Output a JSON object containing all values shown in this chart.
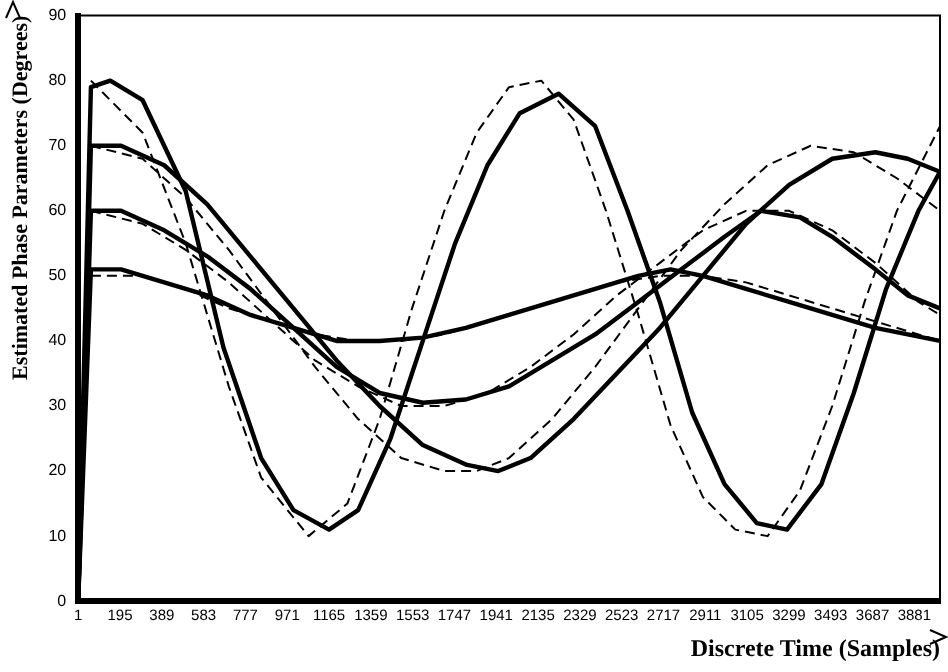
{
  "chart_data": {
    "type": "line",
    "xlabel": "Discrete Time (Samples)",
    "ylabel": "Estimated Phase Parameters (Degrees)",
    "xlim": [
      1,
      4000
    ],
    "ylim": [
      0,
      90
    ],
    "xticks": [
      1,
      195,
      389,
      583,
      777,
      971,
      1165,
      1359,
      1553,
      1747,
      1941,
      2135,
      2329,
      2523,
      2717,
      2911,
      3105,
      3299,
      3493,
      3687,
      3881
    ],
    "yticks": [
      0,
      10,
      20,
      30,
      40,
      50,
      60,
      70,
      80,
      90
    ],
    "grid": false,
    "legend": false,
    "marker": "none",
    "series": [
      {
        "color": "#000000",
        "line_style": "dashed",
        "x": [
          60,
          300,
          500,
          700,
          850,
          1070,
          1250,
          1400,
          1550,
          1700,
          1850,
          2000,
          2150,
          2300,
          2450,
          2600,
          2750,
          2900,
          3050,
          3200,
          3350,
          3500,
          3650,
          3800,
          4000
        ],
        "values": [
          80,
          72,
          55,
          33,
          19,
          10,
          15,
          28,
          45,
          60,
          72,
          79,
          80,
          74,
          60,
          44,
          27,
          16,
          11,
          10,
          17,
          30,
          46,
          60,
          73
        ]
      },
      {
        "color": "#000000",
        "line_style": "dashed",
        "x": [
          60,
          300,
          500,
          700,
          900,
          1100,
          1300,
          1500,
          1700,
          1850,
          2000,
          2200,
          2400,
          2600,
          2800,
          3000,
          3200,
          3400,
          3600,
          3800,
          4000
        ],
        "values": [
          70,
          68,
          62,
          54,
          45,
          36,
          28,
          22,
          20,
          20,
          22,
          28,
          36,
          45,
          54,
          61,
          67,
          70,
          69,
          65,
          60
        ]
      },
      {
        "color": "#000000",
        "line_style": "dashed",
        "x": [
          60,
          300,
          500,
          700,
          900,
          1100,
          1300,
          1500,
          1700,
          1900,
          2100,
          2300,
          2500,
          2700,
          2900,
          3100,
          3300,
          3500,
          3700,
          3900,
          4000
        ],
        "values": [
          60,
          58,
          54,
          49,
          43,
          37,
          33,
          30,
          30,
          32,
          36,
          41,
          47,
          52,
          57,
          60,
          60,
          57,
          52,
          46,
          44
        ]
      },
      {
        "color": "#000000",
        "line_style": "dashed",
        "x": [
          60,
          300,
          500,
          700,
          900,
          1100,
          1300,
          1500,
          1700,
          1900,
          2100,
          2300,
          2500,
          2700,
          2900,
          3100,
          3300,
          3500,
          3700,
          3900,
          4000
        ],
        "values": [
          50,
          50,
          48,
          45,
          43,
          41,
          40,
          40,
          41,
          43,
          45,
          47,
          49,
          50,
          50,
          49,
          47,
          45,
          43,
          41,
          40
        ]
      },
      {
        "color": "#000000",
        "line_style": "solid",
        "x": [
          1,
          60,
          150,
          300,
          500,
          675,
          850,
          1000,
          1165,
          1300,
          1450,
          1600,
          1750,
          1900,
          2050,
          2230,
          2400,
          2550,
          2700,
          2850,
          3000,
          3150,
          3290,
          3450,
          3600,
          3750,
          3900,
          4000
        ],
        "values": [
          0,
          79,
          80,
          77,
          63,
          39,
          22,
          14,
          11,
          14,
          25,
          40,
          55,
          67,
          75,
          78,
          73,
          60,
          46,
          29,
          18,
          12,
          11,
          18,
          32,
          48,
          60,
          66
        ]
      },
      {
        "color": "#000000",
        "line_style": "solid",
        "x": [
          1,
          60,
          200,
          400,
          600,
          800,
          1000,
          1200,
          1400,
          1600,
          1800,
          1950,
          2100,
          2300,
          2500,
          2700,
          2900,
          3100,
          3300,
          3500,
          3700,
          3850,
          4000
        ],
        "values": [
          0,
          70,
          70,
          67,
          61,
          53,
          45,
          37,
          30,
          24,
          21,
          20,
          22,
          28,
          35,
          42,
          50,
          58,
          64,
          68,
          69,
          68,
          66
        ]
      },
      {
        "color": "#000000",
        "line_style": "solid",
        "x": [
          1,
          60,
          200,
          400,
          600,
          800,
          1000,
          1200,
          1400,
          1600,
          1800,
          2000,
          2200,
          2400,
          2600,
          2800,
          3000,
          3170,
          3350,
          3500,
          3700,
          3850,
          4000
        ],
        "values": [
          0,
          60,
          60,
          57,
          53,
          48,
          42,
          36,
          32,
          30.5,
          31,
          33,
          37,
          41,
          46,
          51,
          56,
          60,
          59,
          56,
          51,
          47,
          45
        ]
      },
      {
        "color": "#000000",
        "line_style": "solid",
        "x": [
          1,
          60,
          200,
          400,
          600,
          800,
          1000,
          1200,
          1400,
          1600,
          1800,
          2000,
          2200,
          2400,
          2600,
          2750,
          2900,
          3100,
          3300,
          3500,
          3700,
          3850,
          4000
        ],
        "values": [
          0,
          51,
          51,
          49,
          47,
          44,
          42,
          40,
          40,
          40.5,
          42,
          44,
          46,
          48,
          50,
          51,
          50,
          48,
          46,
          44,
          42,
          41,
          40
        ]
      }
    ]
  }
}
